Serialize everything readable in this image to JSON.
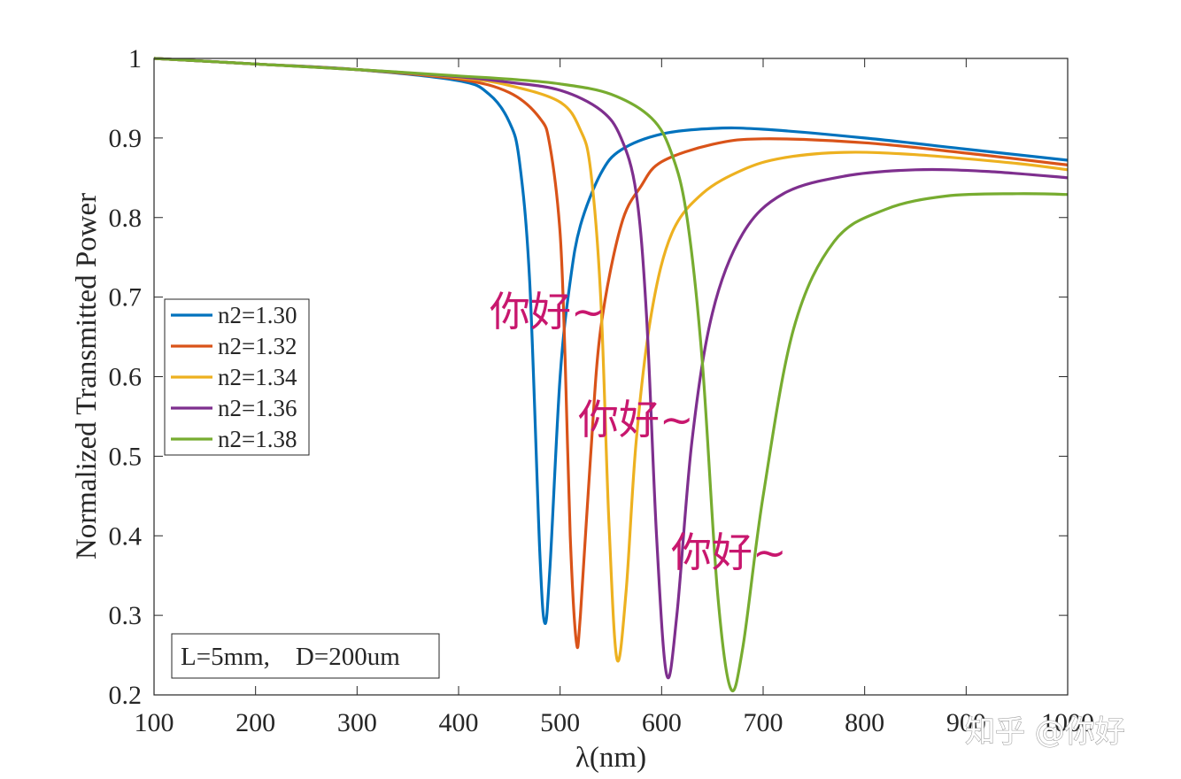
{
  "chart_data": {
    "type": "line",
    "title": "",
    "xlabel": "λ(nm)",
    "ylabel": "Normalized Transmitted Power",
    "xlim": [
      100,
      1000
    ],
    "ylim": [
      0.2,
      1.0
    ],
    "xticks": [
      100,
      200,
      300,
      400,
      500,
      600,
      700,
      800,
      900,
      1000
    ],
    "xtick_labels": [
      "100",
      "200",
      "300",
      "400",
      "500",
      "600",
      "700",
      "800",
      "900",
      "1000"
    ],
    "yticks": [
      0.2,
      0.3,
      0.4,
      0.5,
      0.6,
      0.7,
      0.8,
      0.9,
      1.0
    ],
    "ytick_labels": [
      "0.2",
      "0.3",
      "0.4",
      "0.5",
      "0.6",
      "0.7",
      "0.8",
      "0.9",
      "1"
    ],
    "grid": false,
    "legend_position": "middle-left",
    "series": [
      {
        "name": "n2=1.30",
        "color": "#0072BD",
        "x": [
          100,
          200,
          300,
          400,
          430,
          450,
          460,
          470,
          480,
          485,
          490,
          500,
          510,
          520,
          540,
          560,
          600,
          650,
          700,
          800,
          900,
          1000
        ],
        "y": [
          1.0,
          0.993,
          0.986,
          0.972,
          0.955,
          0.92,
          0.87,
          0.72,
          0.38,
          0.29,
          0.36,
          0.6,
          0.72,
          0.79,
          0.855,
          0.885,
          0.905,
          0.912,
          0.911,
          0.9,
          0.886,
          0.872
        ]
      },
      {
        "name": "n2=1.32",
        "color": "#D95319",
        "x": [
          100,
          200,
          300,
          400,
          450,
          480,
          490,
          500,
          505,
          510,
          516,
          520,
          530,
          540,
          560,
          580,
          600,
          650,
          700,
          800,
          900,
          1000
        ],
        "y": [
          1.0,
          0.993,
          0.986,
          0.974,
          0.957,
          0.925,
          0.89,
          0.78,
          0.62,
          0.4,
          0.267,
          0.3,
          0.5,
          0.66,
          0.79,
          0.84,
          0.87,
          0.892,
          0.899,
          0.894,
          0.881,
          0.866
        ]
      },
      {
        "name": "n2=1.34",
        "color": "#EDB120",
        "x": [
          100,
          200,
          300,
          400,
          450,
          500,
          520,
          530,
          540,
          548,
          556,
          565,
          575,
          590,
          610,
          640,
          680,
          720,
          780,
          850,
          950,
          1000
        ],
        "y": [
          1.0,
          0.993,
          0.986,
          0.976,
          0.966,
          0.945,
          0.91,
          0.86,
          0.7,
          0.42,
          0.245,
          0.33,
          0.52,
          0.68,
          0.78,
          0.83,
          0.86,
          0.875,
          0.882,
          0.879,
          0.868,
          0.86
        ]
      },
      {
        "name": "n2=1.36",
        "color": "#7E2F8E",
        "x": [
          100,
          200,
          300,
          400,
          450,
          500,
          540,
          560,
          575,
          585,
          595,
          605,
          615,
          630,
          650,
          680,
          720,
          780,
          850,
          920,
          1000
        ],
        "y": [
          1.0,
          0.993,
          0.986,
          0.977,
          0.97,
          0.96,
          0.935,
          0.9,
          0.83,
          0.68,
          0.4,
          0.225,
          0.3,
          0.52,
          0.68,
          0.78,
          0.83,
          0.852,
          0.86,
          0.858,
          0.85
        ]
      },
      {
        "name": "n2=1.38",
        "color": "#77AC30",
        "x": [
          100,
          200,
          300,
          400,
          450,
          500,
          550,
          590,
          610,
          625,
          640,
          655,
          668,
          680,
          700,
          730,
          770,
          820,
          880,
          950,
          1000
        ],
        "y": [
          1.0,
          0.993,
          0.986,
          0.978,
          0.974,
          0.968,
          0.955,
          0.925,
          0.88,
          0.8,
          0.62,
          0.33,
          0.208,
          0.26,
          0.45,
          0.66,
          0.77,
          0.81,
          0.827,
          0.83,
          0.829
        ]
      }
    ],
    "annotations": [
      "L=5mm,    D=200um"
    ]
  },
  "overlay_notes": [
    "你好~",
    "你好~",
    "你好~"
  ],
  "watermark": "知乎 @你好"
}
